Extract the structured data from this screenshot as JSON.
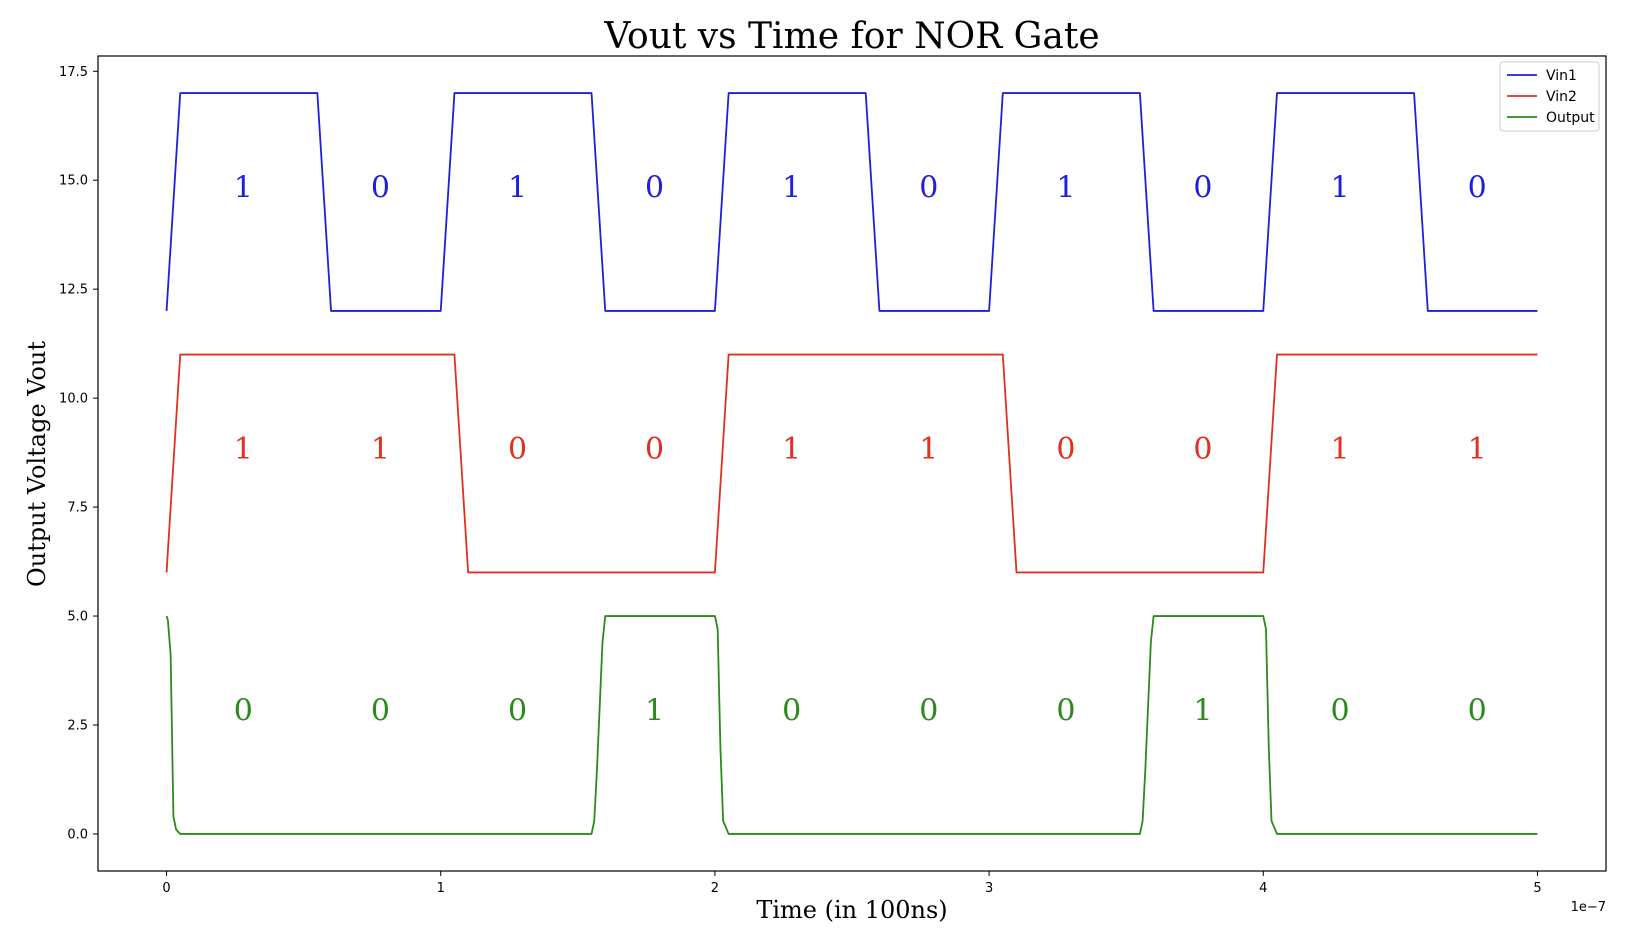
{
  "chart_data": {
    "type": "line",
    "title": "Vout vs Time for NOR Gate",
    "xlabel": "Time (in 100ns)",
    "ylabel": "Output Voltage Vout",
    "x_offset_text": "1e−7",
    "xlim": [
      -0.25,
      5.25
    ],
    "ylim": [
      -0.85,
      17.85
    ],
    "x_ticks": [
      0,
      1,
      2,
      3,
      4,
      5
    ],
    "x_tick_labels": [
      "0",
      "1",
      "2",
      "3",
      "4",
      "5"
    ],
    "y_ticks": [
      0,
      2.5,
      5,
      7.5,
      10,
      12.5,
      15,
      17.5
    ],
    "y_tick_labels": [
      "0.0",
      "2.5",
      "5.0",
      "7.5",
      "10.0",
      "12.5",
      "15.0",
      "17.5"
    ],
    "grid": false,
    "legend_position": "top-right",
    "series": [
      {
        "name": "Vin1",
        "color": "#1f1fdf",
        "x": [
          0,
          0.05,
          0.55,
          0.6,
          1.0,
          1.05,
          1.55,
          1.6,
          2.0,
          2.05,
          2.55,
          2.6,
          3.0,
          3.05,
          3.55,
          3.6,
          4.0,
          4.05,
          4.55,
          4.6,
          5.0
        ],
        "y": [
          12,
          17,
          17,
          12,
          12,
          17,
          17,
          12,
          12,
          17,
          17,
          12,
          12,
          17,
          17,
          12,
          12,
          17,
          17,
          12,
          12
        ]
      },
      {
        "name": "Vin2",
        "color": "#e03020",
        "x": [
          0,
          0.05,
          1.05,
          1.1,
          2.0,
          2.05,
          3.05,
          3.1,
          4.0,
          4.05,
          5.0
        ],
        "y": [
          6,
          11,
          11,
          6,
          6,
          11,
          11,
          6,
          6,
          11,
          11
        ]
      },
      {
        "name": "Output",
        "color": "#2a8a1a",
        "x": [
          0,
          0.005,
          0.015,
          0.025,
          0.035,
          0.05,
          1.55,
          1.56,
          1.57,
          1.59,
          1.6,
          2.0,
          2.01,
          2.02,
          2.03,
          2.05,
          3.55,
          3.56,
          3.57,
          3.59,
          3.6,
          4.0,
          4.01,
          4.02,
          4.03,
          4.05,
          5.0
        ],
        "y": [
          5,
          4.9,
          4.1,
          0.4,
          0.1,
          0,
          0,
          0.3,
          1.5,
          4.4,
          5,
          5,
          4.7,
          2.0,
          0.3,
          0,
          0,
          0.3,
          1.5,
          4.4,
          5,
          5,
          4.7,
          2.0,
          0.3,
          0,
          0
        ]
      }
    ],
    "annotations": [
      {
        "series": "Vin1",
        "y": 14.6,
        "x": [
          0.28,
          0.78,
          1.28,
          1.78,
          2.28,
          2.78,
          3.28,
          3.78,
          4.28,
          4.78
        ],
        "labels": [
          "1",
          "0",
          "1",
          "0",
          "1",
          "0",
          "1",
          "0",
          "1",
          "0"
        ]
      },
      {
        "series": "Vin2",
        "y": 8.6,
        "x": [
          0.28,
          0.78,
          1.28,
          1.78,
          2.28,
          2.78,
          3.28,
          3.78,
          4.28,
          4.78
        ],
        "labels": [
          "1",
          "1",
          "0",
          "0",
          "1",
          "1",
          "0",
          "0",
          "1",
          "1"
        ]
      },
      {
        "series": "Output",
        "y": 2.6,
        "x": [
          0.28,
          0.78,
          1.28,
          1.78,
          2.28,
          2.78,
          3.28,
          3.78,
          4.28,
          4.78
        ],
        "labels": [
          "0",
          "0",
          "0",
          "1",
          "0",
          "0",
          "0",
          "1",
          "0",
          "0"
        ]
      }
    ]
  }
}
